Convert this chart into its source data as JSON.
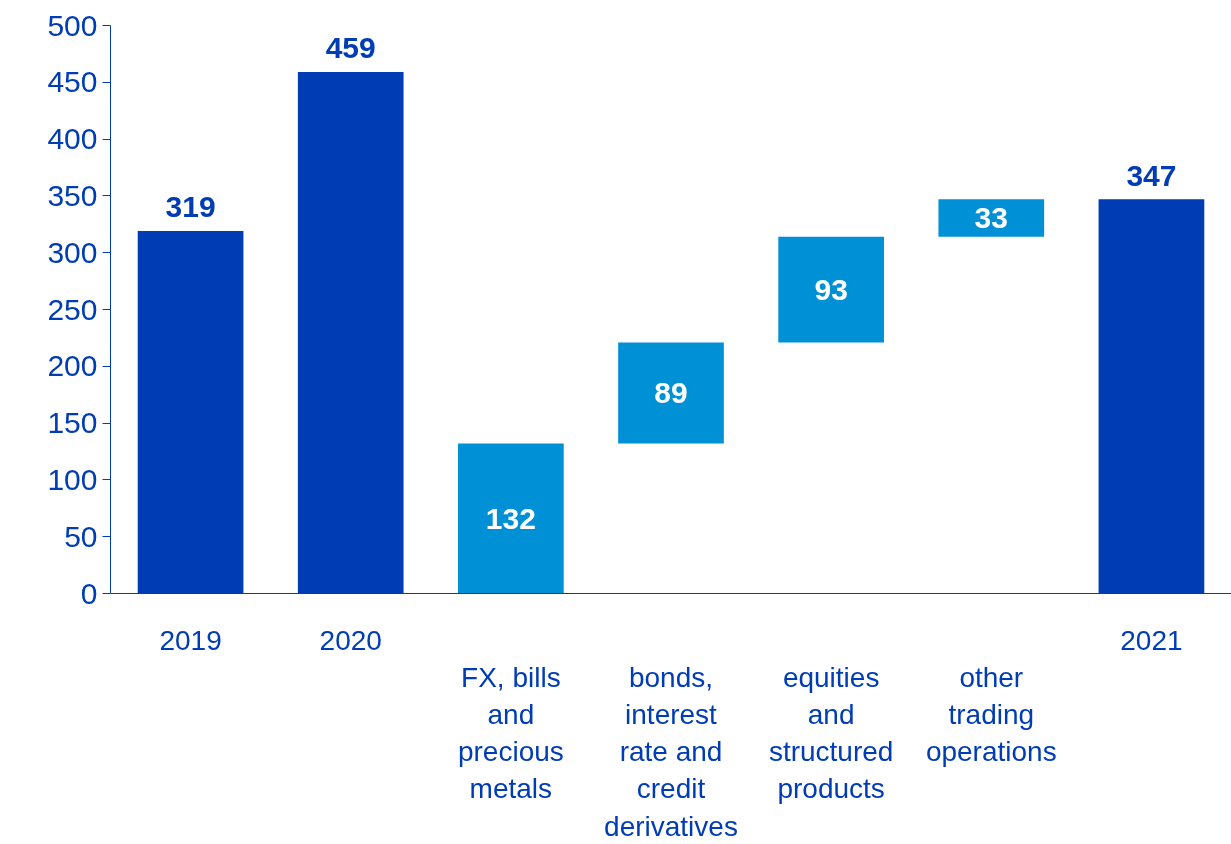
{
  "chart_data": {
    "type": "bar",
    "categories": [
      "2019",
      "2020",
      "FX, bills and precious metals",
      "bonds, interest rate and credit derivatives",
      "equities and structured products",
      "other trading operations",
      "2021"
    ],
    "values": [
      319,
      459,
      132,
      89,
      93,
      33,
      347
    ],
    "base": [
      null,
      null,
      0,
      132,
      221,
      314,
      null
    ],
    "colors": [
      "#003cb4",
      "#003cb4",
      "#0090d6",
      "#0090d6",
      "#0090d6",
      "#0090d6",
      "#003cb4"
    ],
    "ylim": [
      0,
      500
    ],
    "yticks": [
      0,
      50,
      100,
      150,
      200,
      250,
      300,
      350,
      400,
      450,
      500
    ],
    "data_labels": true,
    "grid": false
  }
}
